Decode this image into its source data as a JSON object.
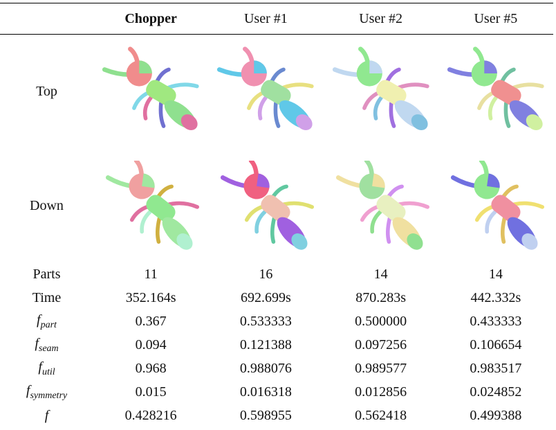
{
  "table": {
    "header": [
      "Chopper",
      "User #1",
      "User #2",
      "User #5"
    ],
    "image_rows": [
      "Top",
      "Down"
    ],
    "rows": [
      {
        "label": "Parts",
        "values": [
          "11",
          "16",
          "14",
          "14"
        ]
      },
      {
        "label": "Time",
        "values": [
          "352.164s",
          "692.699s",
          "870.283s",
          "442.332s"
        ]
      },
      {
        "label": {
          "base": "f",
          "sub": "part"
        },
        "values": [
          "0.367",
          "0.533333",
          "0.500000",
          "0.433333"
        ]
      },
      {
        "label": {
          "base": "f",
          "sub": "seam"
        },
        "values": [
          "0.094",
          "0.121388",
          "0.097256",
          "0.106654"
        ]
      },
      {
        "label": {
          "base": "f",
          "sub": "util"
        },
        "values": [
          "0.968",
          "0.988076",
          "0.989577",
          "0.983517"
        ]
      },
      {
        "label": {
          "base": "f",
          "sub": "symmetry"
        },
        "values": [
          "0.015",
          "0.016318",
          "0.012856",
          "0.024852"
        ]
      },
      {
        "label": "f",
        "values": [
          "0.428216",
          "0.598955",
          "0.562418",
          "0.499388"
        ]
      }
    ]
  }
}
